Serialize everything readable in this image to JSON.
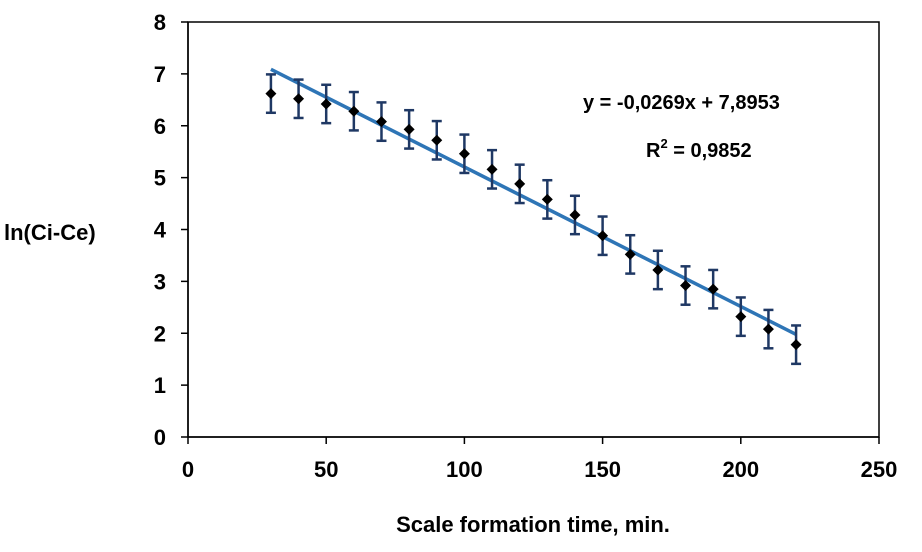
{
  "chart_data": {
    "type": "scatter",
    "title": "",
    "xlabel": "Scale formation time, min.",
    "ylabel": "ln(Ci-Ce)",
    "xlim": [
      0,
      250
    ],
    "ylim": [
      0,
      8
    ],
    "xticks": [
      "0",
      "50",
      "100",
      "150",
      "200",
      "250"
    ],
    "yticks": [
      "0",
      "1",
      "2",
      "3",
      "4",
      "5",
      "6",
      "7",
      "8"
    ],
    "grid": false,
    "legend": "none",
    "series": [
      {
        "marker": "diamond",
        "color": "#000000",
        "x": [
          30,
          40,
          50,
          60,
          70,
          80,
          90,
          100,
          110,
          120,
          130,
          140,
          150,
          160,
          170,
          180,
          190,
          200,
          210,
          220
        ],
        "y": [
          6.62,
          6.52,
          6.42,
          6.28,
          6.08,
          5.93,
          5.72,
          5.46,
          5.16,
          4.88,
          4.58,
          4.28,
          3.88,
          3.52,
          3.22,
          2.92,
          2.85,
          2.32,
          2.08,
          1.78
        ],
        "error": 0.37,
        "error_color": "#1f3864"
      }
    ],
    "trendline": {
      "slope": -0.0269,
      "intercept": 7.8953,
      "x_range": [
        30,
        220
      ],
      "color": "#2e75b6"
    },
    "annotations": {
      "equation": "y = -0,0269x + 7,8953",
      "r2_prefix": "R",
      "r2_sup": "2",
      "r2_value": " = 0,9852"
    }
  }
}
